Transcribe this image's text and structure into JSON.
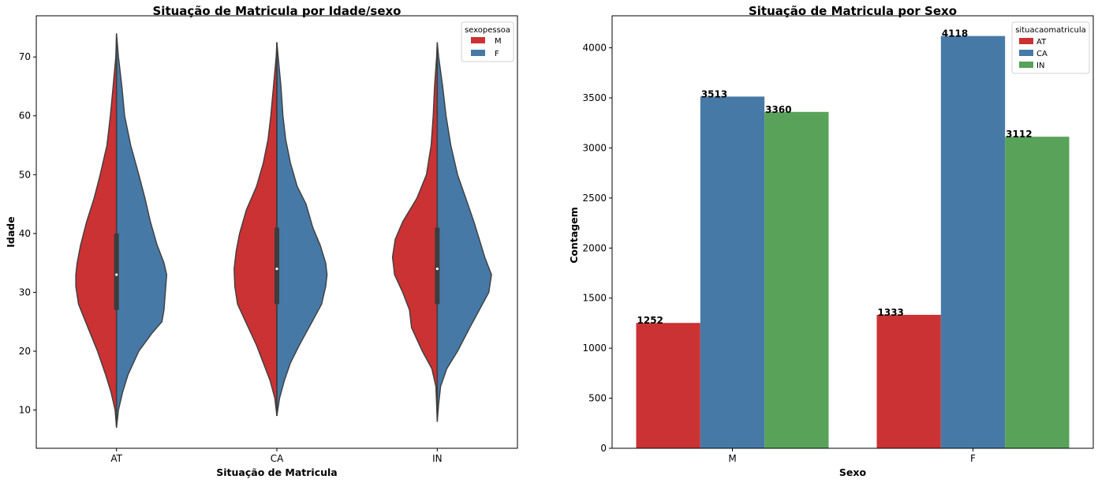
{
  "chart_data": [
    {
      "type": "violin",
      "title": "Situação de Matricula por Idade/sexo",
      "xlabel": "Situação de Matricula",
      "ylabel": "Idade",
      "categories": [
        "AT",
        "CA",
        "IN"
      ],
      "ylim": [
        3.5,
        77
      ],
      "yticks": [
        10,
        20,
        30,
        40,
        50,
        60,
        70
      ],
      "split": true,
      "legend": {
        "title": "sexopessoa",
        "position": "top-right",
        "entries": [
          "M",
          "F"
        ]
      },
      "colors": {
        "M": "#cb3234",
        "F": "#4779a6"
      },
      "series": [
        {
          "category": "AT",
          "min": 7,
          "max": 74,
          "q1": 27,
          "median": 33,
          "q3": 40,
          "M_shape": [
            [
              7,
              0
            ],
            [
              10,
              0.02
            ],
            [
              13,
              0.08
            ],
            [
              16,
              0.16
            ],
            [
              20,
              0.28
            ],
            [
              24,
              0.42
            ],
            [
              28,
              0.56
            ],
            [
              31,
              0.6
            ],
            [
              33,
              0.6
            ],
            [
              35,
              0.58
            ],
            [
              38,
              0.53
            ],
            [
              42,
              0.44
            ],
            [
              46,
              0.33
            ],
            [
              50,
              0.24
            ],
            [
              55,
              0.14
            ],
            [
              60,
              0.09
            ],
            [
              65,
              0.05
            ],
            [
              70,
              0.01
            ],
            [
              74,
              0
            ]
          ],
          "F_shape": [
            [
              7,
              0
            ],
            [
              10,
              0.03
            ],
            [
              13,
              0.09
            ],
            [
              16,
              0.17
            ],
            [
              20,
              0.33
            ],
            [
              23,
              0.52
            ],
            [
              25,
              0.67
            ],
            [
              27,
              0.7
            ],
            [
              30,
              0.72
            ],
            [
              33,
              0.74
            ],
            [
              35,
              0.7
            ],
            [
              38,
              0.6
            ],
            [
              42,
              0.5
            ],
            [
              46,
              0.42
            ],
            [
              50,
              0.33
            ],
            [
              55,
              0.21
            ],
            [
              60,
              0.12
            ],
            [
              65,
              0.08
            ],
            [
              70,
              0.03
            ],
            [
              74,
              0
            ]
          ]
        },
        {
          "category": "CA",
          "min": 9,
          "max": 72.5,
          "q1": 28,
          "median": 34,
          "q3": 41,
          "M_shape": [
            [
              9,
              0
            ],
            [
              12,
              0.03
            ],
            [
              15,
              0.1
            ],
            [
              18,
              0.2
            ],
            [
              21,
              0.3
            ],
            [
              25,
              0.46
            ],
            [
              28,
              0.58
            ],
            [
              31,
              0.62
            ],
            [
              34,
              0.63
            ],
            [
              37,
              0.6
            ],
            [
              40,
              0.55
            ],
            [
              44,
              0.45
            ],
            [
              48,
              0.3
            ],
            [
              52,
              0.2
            ],
            [
              56,
              0.13
            ],
            [
              60,
              0.09
            ],
            [
              65,
              0.05
            ],
            [
              70,
              0.01
            ],
            [
              72.5,
              0
            ]
          ],
          "F_shape": [
            [
              9,
              0
            ],
            [
              12,
              0.04
            ],
            [
              15,
              0.11
            ],
            [
              18,
              0.2
            ],
            [
              21,
              0.33
            ],
            [
              25,
              0.52
            ],
            [
              28,
              0.66
            ],
            [
              31,
              0.72
            ],
            [
              33,
              0.74
            ],
            [
              35,
              0.72
            ],
            [
              38,
              0.64
            ],
            [
              41,
              0.53
            ],
            [
              45,
              0.43
            ],
            [
              48,
              0.3
            ],
            [
              52,
              0.2
            ],
            [
              56,
              0.13
            ],
            [
              60,
              0.09
            ],
            [
              65,
              0.06
            ],
            [
              70,
              0.02
            ],
            [
              72.5,
              0
            ]
          ]
        },
        {
          "category": "IN",
          "min": 8,
          "max": 72.5,
          "q1": 28,
          "median": 34,
          "q3": 41,
          "M_shape": [
            [
              8,
              0
            ],
            [
              11,
              0.01
            ],
            [
              14,
              0.02
            ],
            [
              17,
              0.08
            ],
            [
              20,
              0.22
            ],
            [
              24,
              0.38
            ],
            [
              27,
              0.41
            ],
            [
              30,
              0.51
            ],
            [
              33,
              0.63
            ],
            [
              36,
              0.66
            ],
            [
              39,
              0.62
            ],
            [
              42,
              0.51
            ],
            [
              46,
              0.3
            ],
            [
              50,
              0.16
            ],
            [
              55,
              0.09
            ],
            [
              60,
              0.06
            ],
            [
              65,
              0.04
            ],
            [
              70,
              0.01
            ],
            [
              72.5,
              0
            ]
          ],
          "F_shape": [
            [
              8,
              0
            ],
            [
              11,
              0.02
            ],
            [
              14,
              0.05
            ],
            [
              17,
              0.14
            ],
            [
              20,
              0.3
            ],
            [
              24,
              0.48
            ],
            [
              27,
              0.62
            ],
            [
              30,
              0.76
            ],
            [
              33,
              0.8
            ],
            [
              36,
              0.7
            ],
            [
              39,
              0.62
            ],
            [
              42,
              0.54
            ],
            [
              46,
              0.42
            ],
            [
              50,
              0.3
            ],
            [
              55,
              0.2
            ],
            [
              60,
              0.13
            ],
            [
              65,
              0.08
            ],
            [
              70,
              0.02
            ],
            [
              72.5,
              0
            ]
          ]
        }
      ]
    },
    {
      "type": "bar",
      "title": "Situação de Matricula por Sexo",
      "xlabel": "Sexo",
      "ylabel": "Contagem",
      "categories": [
        "M",
        "F"
      ],
      "ylim": [
        0,
        4320
      ],
      "yticks": [
        0,
        500,
        1000,
        1500,
        2000,
        2500,
        3000,
        3500,
        4000
      ],
      "legend": {
        "title": "situacaomatricula",
        "position": "top-right"
      },
      "series": [
        {
          "name": "AT",
          "color": "#cb3234",
          "values": [
            1252,
            1333
          ]
        },
        {
          "name": "CA",
          "color": "#4779a6",
          "values": [
            3513,
            4118
          ]
        },
        {
          "name": "IN",
          "color": "#58a25a",
          "values": [
            3360,
            3112
          ]
        }
      ]
    }
  ]
}
